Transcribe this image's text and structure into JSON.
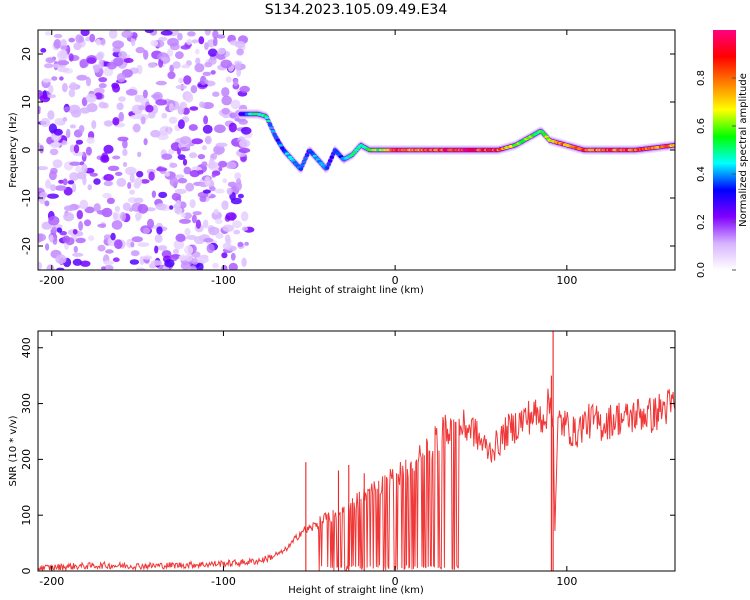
{
  "title": "S134.2023.105.09.49.E34",
  "chart_data": [
    {
      "type": "heatmap",
      "title": "S134.2023.105.09.49.E34",
      "xlabel": "Height of straight line (km)",
      "ylabel": "Frequency (Hz)",
      "xlim": [
        -208,
        163
      ],
      "ylim": [
        -25,
        25
      ],
      "x_ticks": [
        -200,
        -100,
        0,
        100
      ],
      "y_ticks": [
        -20,
        -10,
        0,
        10,
        20
      ],
      "colorbar": {
        "label": "Normalized spectral amplitude",
        "range": [
          0,
          1
        ],
        "ticks": [
          0.0,
          0.2,
          0.4,
          0.6,
          0.8
        ],
        "colors": [
          "#ffffff",
          "#d6b3ff",
          "#8000ff",
          "#0000ff",
          "#00ffff",
          "#00ff00",
          "#ffff00",
          "#ff8000",
          "#ff0000",
          "#ff0080"
        ]
      },
      "noise_region_x": [
        -208,
        -85
      ],
      "ridge": {
        "x": [
          -90,
          -80,
          -75,
          -70,
          -65,
          -60,
          -55,
          -50,
          -45,
          -40,
          -35,
          -30,
          -25,
          -20,
          -15,
          -10,
          -5,
          0,
          20,
          40,
          60,
          70,
          80,
          85,
          90,
          100,
          110,
          120,
          140,
          163
        ],
        "y": [
          7.5,
          7.5,
          7,
          3,
          0,
          -2,
          -4,
          0,
          -2,
          -4,
          0,
          -2,
          -1,
          1,
          0,
          0,
          0,
          0,
          0,
          0,
          0,
          1,
          3,
          4,
          2,
          1,
          0,
          0,
          0,
          1
        ],
        "amplitude": [
          0.3,
          0.55,
          0.5,
          0.35,
          0.4,
          0.45,
          0.35,
          0.4,
          0.45,
          0.35,
          0.35,
          0.4,
          0.5,
          0.5,
          0.55,
          0.6,
          0.7,
          0.8,
          0.85,
          0.9,
          0.85,
          0.6,
          0.6,
          0.55,
          0.7,
          0.8,
          0.85,
          0.8,
          0.85,
          0.75
        ]
      }
    },
    {
      "type": "line",
      "xlabel": "Height of straight line (km)",
      "ylabel": "SNR (10 * v/v)",
      "xlim": [
        -208,
        163
      ],
      "ylim": [
        0,
        430
      ],
      "x_ticks": [
        -200,
        -100,
        0,
        100
      ],
      "y_ticks": [
        0,
        100,
        200,
        300,
        400
      ],
      "series": [
        {
          "name": "SNR",
          "color": "#ee2222",
          "x": [
            -208,
            -190,
            -170,
            -150,
            -130,
            -110,
            -90,
            -80,
            -75,
            -70,
            -65,
            -60,
            -55,
            -50,
            -45,
            -40,
            -35,
            -30,
            -25,
            -20,
            -15,
            -10,
            -5,
            0,
            5,
            10,
            15,
            20,
            25,
            30,
            35,
            40,
            45,
            50,
            55,
            60,
            65,
            70,
            75,
            80,
            85,
            88,
            90,
            92,
            93,
            95,
            100,
            105,
            110,
            115,
            120,
            125,
            130,
            135,
            140,
            145,
            150,
            155,
            163
          ],
          "y": [
            5,
            8,
            10,
            9,
            10,
            12,
            15,
            18,
            22,
            28,
            35,
            50,
            70,
            75,
            85,
            95,
            100,
            110,
            120,
            130,
            140,
            150,
            160,
            170,
            180,
            190,
            205,
            220,
            240,
            255,
            262,
            258,
            255,
            230,
            215,
            228,
            250,
            260,
            272,
            280,
            275,
            285,
            300,
            290,
            70,
            270,
            260,
            245,
            265,
            270,
            262,
            268,
            275,
            272,
            280,
            282,
            278,
            290,
            298
          ]
        }
      ],
      "spikes": [
        {
          "x": -52,
          "y": 195
        },
        {
          "x": -33,
          "y": 180
        },
        {
          "x": -27,
          "y": 190
        },
        {
          "x": -18,
          "y": 175
        },
        {
          "x": 92,
          "y": 430
        },
        {
          "x": 91,
          "y": 350
        }
      ]
    }
  ]
}
